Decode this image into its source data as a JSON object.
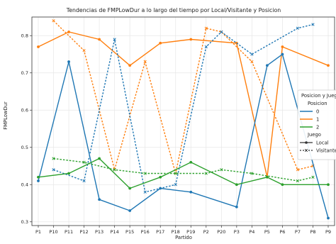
{
  "chart_data": {
    "type": "line",
    "title": "Tendencias de FMPLowDur a lo largo del tiempo por Local/Visitante y Posicion",
    "xlabel": "Partido",
    "ylabel": "FMPLowDur",
    "categories": [
      "P1",
      "P10",
      "P11",
      "P12",
      "P13",
      "P14",
      "P15",
      "P16",
      "P17",
      "P18",
      "P19",
      "P2",
      "P20",
      "P3",
      "P4",
      "P5",
      "P6",
      "P7",
      "P8",
      "P9"
    ],
    "ylim": [
      0.29,
      0.85
    ],
    "yticks": [
      "0.3",
      "0.4",
      "0.5",
      "0.6",
      "0.7",
      "0.8"
    ],
    "grid": true,
    "legend_position": "right",
    "legend": {
      "title": "Posicion y Juego",
      "posicion_header": "Posicion",
      "posicion_items": [
        "0",
        "1",
        "2"
      ],
      "juego_header": "Juego",
      "juego_items": [
        "Local",
        "Visitante"
      ]
    },
    "colors": {
      "0": "#1f77b4",
      "1": "#ff7f0e",
      "2": "#2ca02c"
    },
    "series": [
      {
        "posicion": "1",
        "juego": "Local",
        "values": [
          0.77,
          null,
          0.81,
          null,
          0.79,
          null,
          0.72,
          null,
          0.78,
          null,
          0.79,
          null,
          null,
          0.78,
          null,
          0.42,
          0.77,
          null,
          null,
          0.72
        ]
      },
      {
        "posicion": "1",
        "juego": "Visitante",
        "values": [
          null,
          0.84,
          null,
          0.76,
          null,
          0.44,
          null,
          0.73,
          null,
          0.43,
          null,
          0.82,
          0.81,
          null,
          0.73,
          null,
          null,
          0.44,
          0.45,
          null
        ]
      },
      {
        "posicion": "0",
        "juego": "Local",
        "values": [
          0.41,
          null,
          0.73,
          null,
          0.36,
          null,
          0.33,
          null,
          0.39,
          null,
          0.38,
          null,
          null,
          0.34,
          null,
          0.72,
          0.75,
          null,
          null,
          0.31
        ]
      },
      {
        "posicion": "0",
        "juego": "Visitante",
        "values": [
          null,
          0.44,
          null,
          0.41,
          null,
          0.79,
          null,
          0.38,
          null,
          0.4,
          null,
          0.77,
          0.81,
          null,
          0.75,
          null,
          null,
          0.82,
          0.83,
          null
        ]
      },
      {
        "posicion": "2",
        "juego": "Local",
        "values": [
          0.42,
          null,
          0.43,
          null,
          0.47,
          null,
          0.39,
          null,
          0.42,
          null,
          0.46,
          null,
          null,
          0.4,
          null,
          0.42,
          0.4,
          null,
          null,
          0.4
        ]
      },
      {
        "posicion": "2",
        "juego": "Visitante",
        "values": [
          null,
          0.47,
          null,
          0.46,
          null,
          0.44,
          null,
          0.43,
          null,
          0.43,
          null,
          0.43,
          0.44,
          null,
          0.43,
          null,
          null,
          0.41,
          0.42,
          null
        ]
      }
    ]
  }
}
